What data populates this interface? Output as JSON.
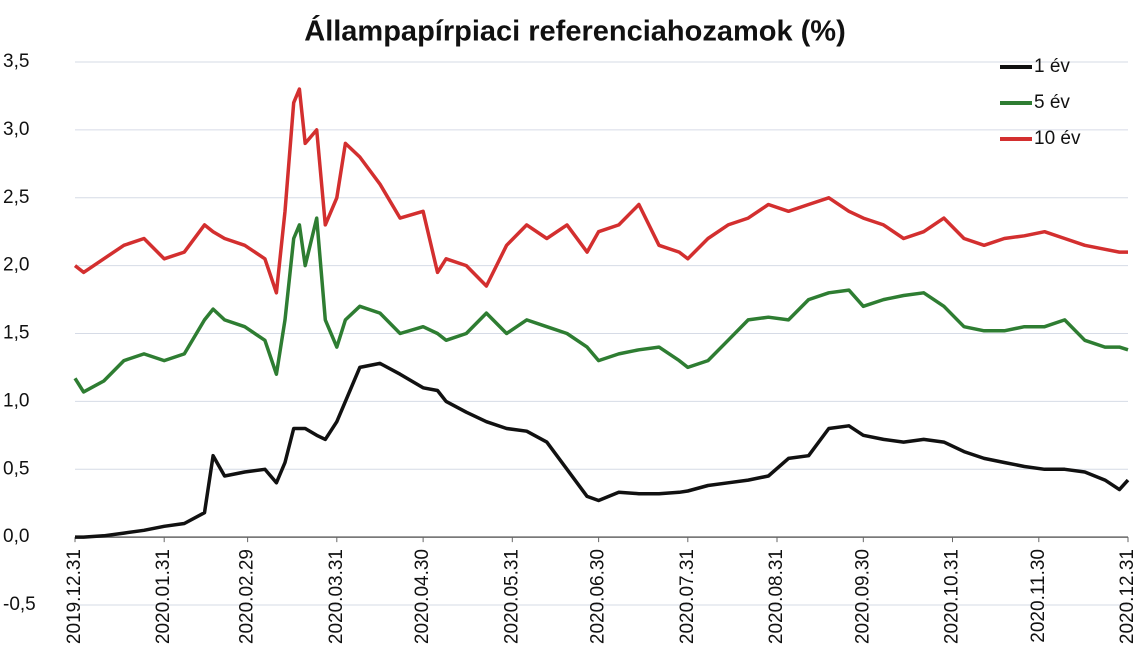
{
  "chart_data": {
    "type": "line",
    "title": "Állampapírpiaci referenciahozamok (%)",
    "x": [
      "2019.12.31",
      "2020.01.03",
      "2020.01.10",
      "2020.01.17",
      "2020.01.24",
      "2020.01.31",
      "2020.02.07",
      "2020.02.14",
      "2020.02.17",
      "2020.02.21",
      "2020.02.28",
      "2020.03.06",
      "2020.03.10",
      "2020.03.13",
      "2020.03.16",
      "2020.03.18",
      "2020.03.20",
      "2020.03.24",
      "2020.03.27",
      "2020.03.31",
      "2020.04.03",
      "2020.04.08",
      "2020.04.15",
      "2020.04.22",
      "2020.04.30",
      "2020.05.05",
      "2020.05.08",
      "2020.05.15",
      "2020.05.22",
      "2020.05.29",
      "2020.06.05",
      "2020.06.12",
      "2020.06.19",
      "2020.06.26",
      "2020.06.30",
      "2020.07.07",
      "2020.07.14",
      "2020.07.21",
      "2020.07.28",
      "2020.07.31",
      "2020.08.07",
      "2020.08.14",
      "2020.08.21",
      "2020.08.28",
      "2020.09.04",
      "2020.09.11",
      "2020.09.18",
      "2020.09.25",
      "2020.09.30",
      "2020.10.07",
      "2020.10.14",
      "2020.10.21",
      "2020.10.28",
      "2020.11.04",
      "2020.11.11",
      "2020.11.18",
      "2020.11.25",
      "2020.12.02",
      "2020.12.09",
      "2020.12.16",
      "2020.12.23",
      "2020.12.28",
      "2020.12.31"
    ],
    "series": [
      {
        "name": "1 év",
        "color": "#111111",
        "values": [
          0.0,
          0.0,
          0.01,
          0.03,
          0.05,
          0.08,
          0.1,
          0.18,
          0.6,
          0.45,
          0.48,
          0.5,
          0.4,
          0.55,
          0.8,
          0.8,
          0.8,
          0.75,
          0.72,
          0.85,
          1.0,
          1.25,
          1.28,
          1.2,
          1.1,
          1.08,
          1.0,
          0.92,
          0.85,
          0.8,
          0.78,
          0.7,
          0.5,
          0.3,
          0.27,
          0.33,
          0.32,
          0.32,
          0.33,
          0.34,
          0.38,
          0.4,
          0.42,
          0.45,
          0.58,
          0.6,
          0.8,
          0.82,
          0.75,
          0.72,
          0.7,
          0.72,
          0.7,
          0.63,
          0.58,
          0.55,
          0.52,
          0.5,
          0.5,
          0.48,
          0.42,
          0.35,
          0.42
        ]
      },
      {
        "name": "5 év",
        "color": "#2e7d32",
        "values": [
          1.17,
          1.07,
          1.15,
          1.3,
          1.35,
          1.3,
          1.35,
          1.6,
          1.68,
          1.6,
          1.55,
          1.45,
          1.2,
          1.6,
          2.2,
          2.3,
          2.0,
          2.35,
          1.6,
          1.4,
          1.6,
          1.7,
          1.65,
          1.5,
          1.55,
          1.5,
          1.45,
          1.5,
          1.65,
          1.5,
          1.6,
          1.55,
          1.5,
          1.4,
          1.3,
          1.35,
          1.38,
          1.4,
          1.3,
          1.25,
          1.3,
          1.45,
          1.6,
          1.62,
          1.6,
          1.75,
          1.8,
          1.82,
          1.7,
          1.75,
          1.78,
          1.8,
          1.7,
          1.55,
          1.52,
          1.52,
          1.55,
          1.55,
          1.6,
          1.45,
          1.4,
          1.4,
          1.38
        ]
      },
      {
        "name": "10 év",
        "color": "#d32f2f",
        "values": [
          2.0,
          1.95,
          2.05,
          2.15,
          2.2,
          2.05,
          2.1,
          2.3,
          2.25,
          2.2,
          2.15,
          2.05,
          1.8,
          2.4,
          3.2,
          3.3,
          2.9,
          3.0,
          2.3,
          2.5,
          2.9,
          2.8,
          2.6,
          2.35,
          2.4,
          1.95,
          2.05,
          2.0,
          1.85,
          2.15,
          2.3,
          2.2,
          2.3,
          2.1,
          2.25,
          2.3,
          2.45,
          2.15,
          2.1,
          2.05,
          2.2,
          2.3,
          2.35,
          2.45,
          2.4,
          2.45,
          2.5,
          2.4,
          2.35,
          2.3,
          2.2,
          2.25,
          2.35,
          2.2,
          2.15,
          2.2,
          2.22,
          2.25,
          2.2,
          2.15,
          2.12,
          2.1,
          2.1
        ]
      }
    ],
    "xlim": [
      "2019.12.31",
      "2020.12.31"
    ],
    "xticks": [
      "2019.12.31",
      "2020.01.31",
      "2020.02.29",
      "2020.03.31",
      "2020.04.30",
      "2020.05.31",
      "2020.06.30",
      "2020.07.31",
      "2020.08.31",
      "2020.09.30",
      "2020.10.31",
      "2020.11.30",
      "2020.12.31"
    ],
    "ylim": [
      -0.5,
      3.5
    ],
    "yticks": [
      {
        "value": -0.5,
        "label": "-0,5"
      },
      {
        "value": 0,
        "label": "0,0"
      },
      {
        "value": 0.5,
        "label": "0,5"
      },
      {
        "value": 1,
        "label": "1,0"
      },
      {
        "value": 1.5,
        "label": "1,5"
      },
      {
        "value": 2,
        "label": "2,0"
      },
      {
        "value": 2.5,
        "label": "2,5"
      },
      {
        "value": 3,
        "label": "3,0"
      },
      {
        "value": 3.5,
        "label": "3,5"
      }
    ],
    "grid": true,
    "legend": "upper right"
  }
}
